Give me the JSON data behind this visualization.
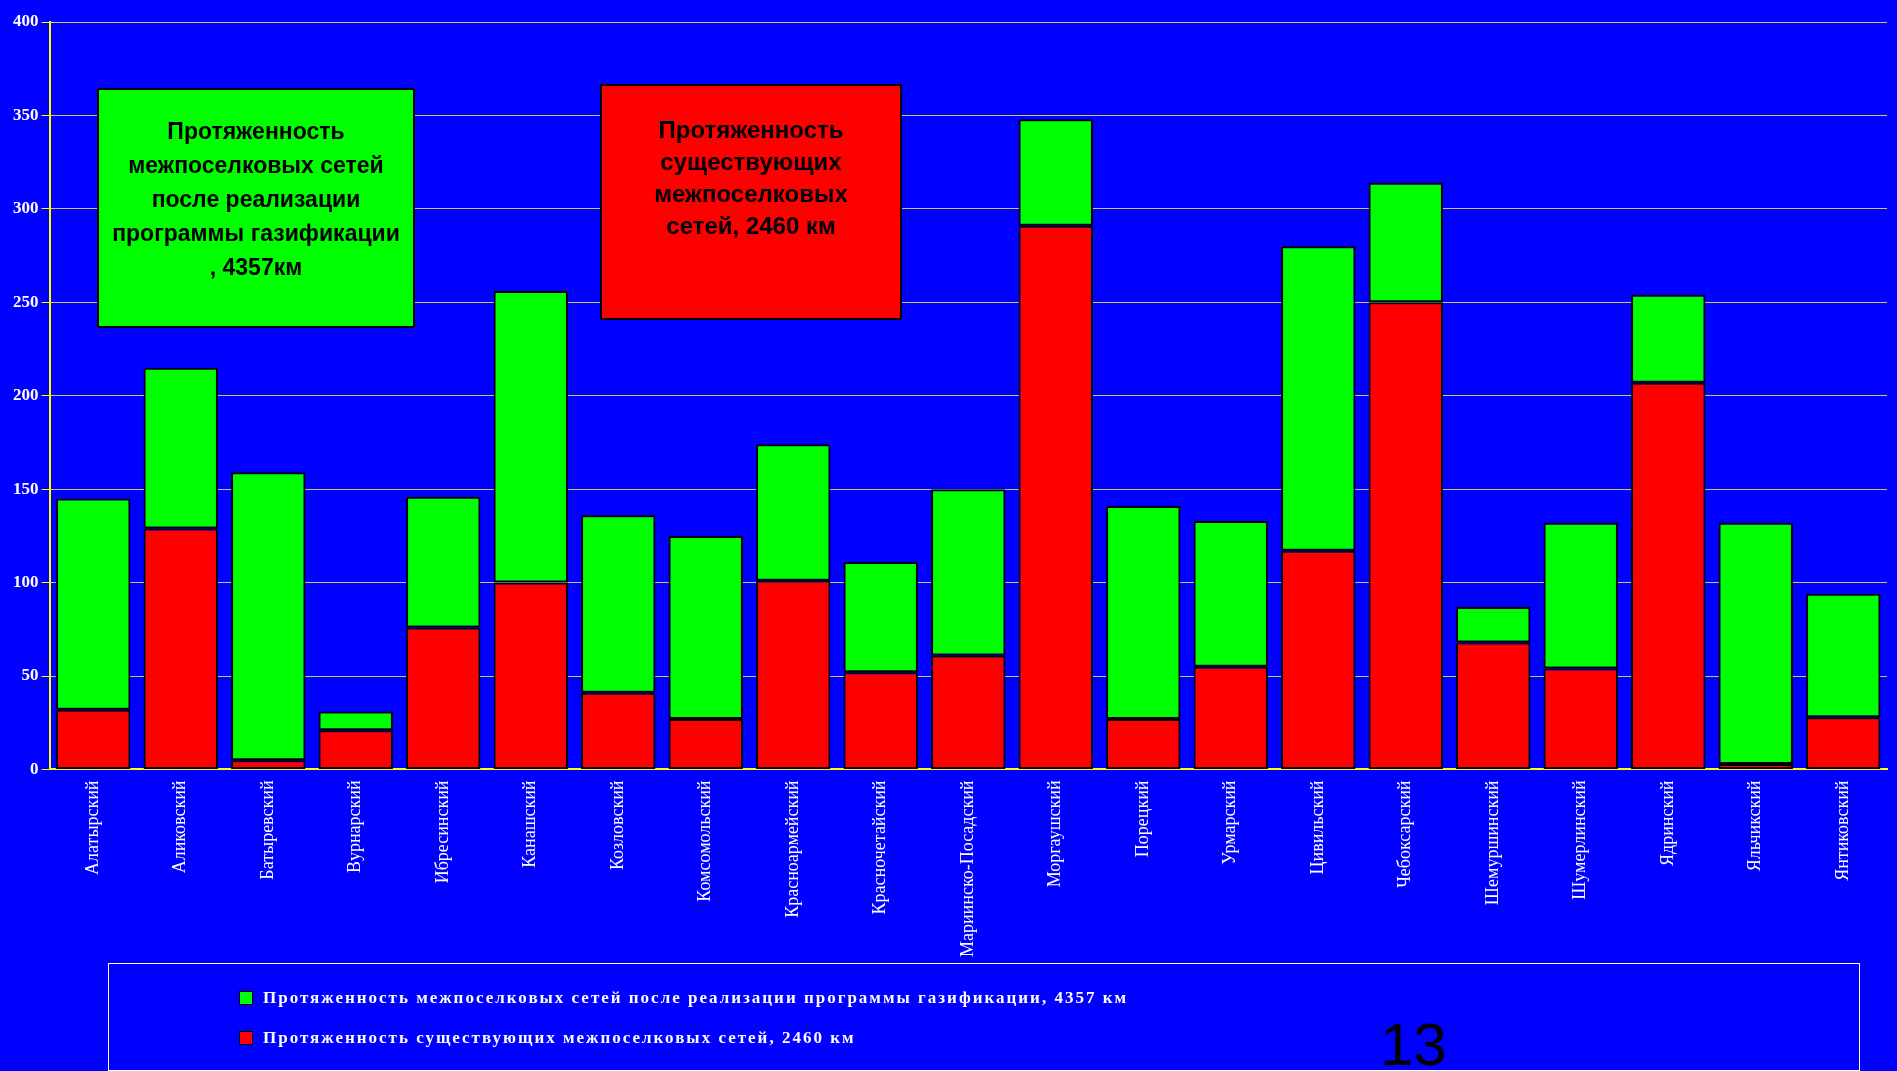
{
  "chart_data": {
    "type": "bar",
    "stacked": true,
    "categories": [
      "Алатырский",
      "Аликовский",
      "Батыревский",
      "Вурнарский",
      "Ибресинский",
      "Канашский",
      "Козловский",
      "Комсомольский",
      "Красноармейский",
      "Красночетайский",
      "Мариинско-Посадский",
      "Моргаушский",
      "Порецкий",
      "Урмарский",
      "Цивильский",
      "Чебоксарский",
      "Шемуршинский",
      "Шумерлинский",
      "Ядринский",
      "Яльчикский",
      "Янтиковский"
    ],
    "series": [
      {
        "name": "Протяженность существующих межпоселковых сетей, 2460 км",
        "color": "#ff0000",
        "values": [
          32,
          129,
          5,
          21,
          76,
          100,
          41,
          27,
          101,
          52,
          61,
          291,
          27,
          55,
          117,
          250,
          68,
          54,
          207,
          3,
          28
        ]
      },
      {
        "name": "Протяженность межпоселковых сетей после реализации программы газификации, 4357 км",
        "color": "#00ff00",
        "values": [
          113,
          86,
          154,
          10,
          70,
          156,
          95,
          98,
          73,
          59,
          89,
          57,
          114,
          78,
          163,
          64,
          19,
          78,
          47,
          129,
          66
        ]
      }
    ],
    "ylim": [
      0,
      400
    ],
    "yticks": [
      0,
      50,
      100,
      150,
      200,
      250,
      300,
      350,
      400
    ],
    "grid": "y",
    "legend": "bottom",
    "annotations": [
      "Протяженность межпоселковых сетей после реализации программы газификации , 4357км",
      "Протяженность существующих межпоселковых сетей, 2460 км",
      "13"
    ]
  }
}
